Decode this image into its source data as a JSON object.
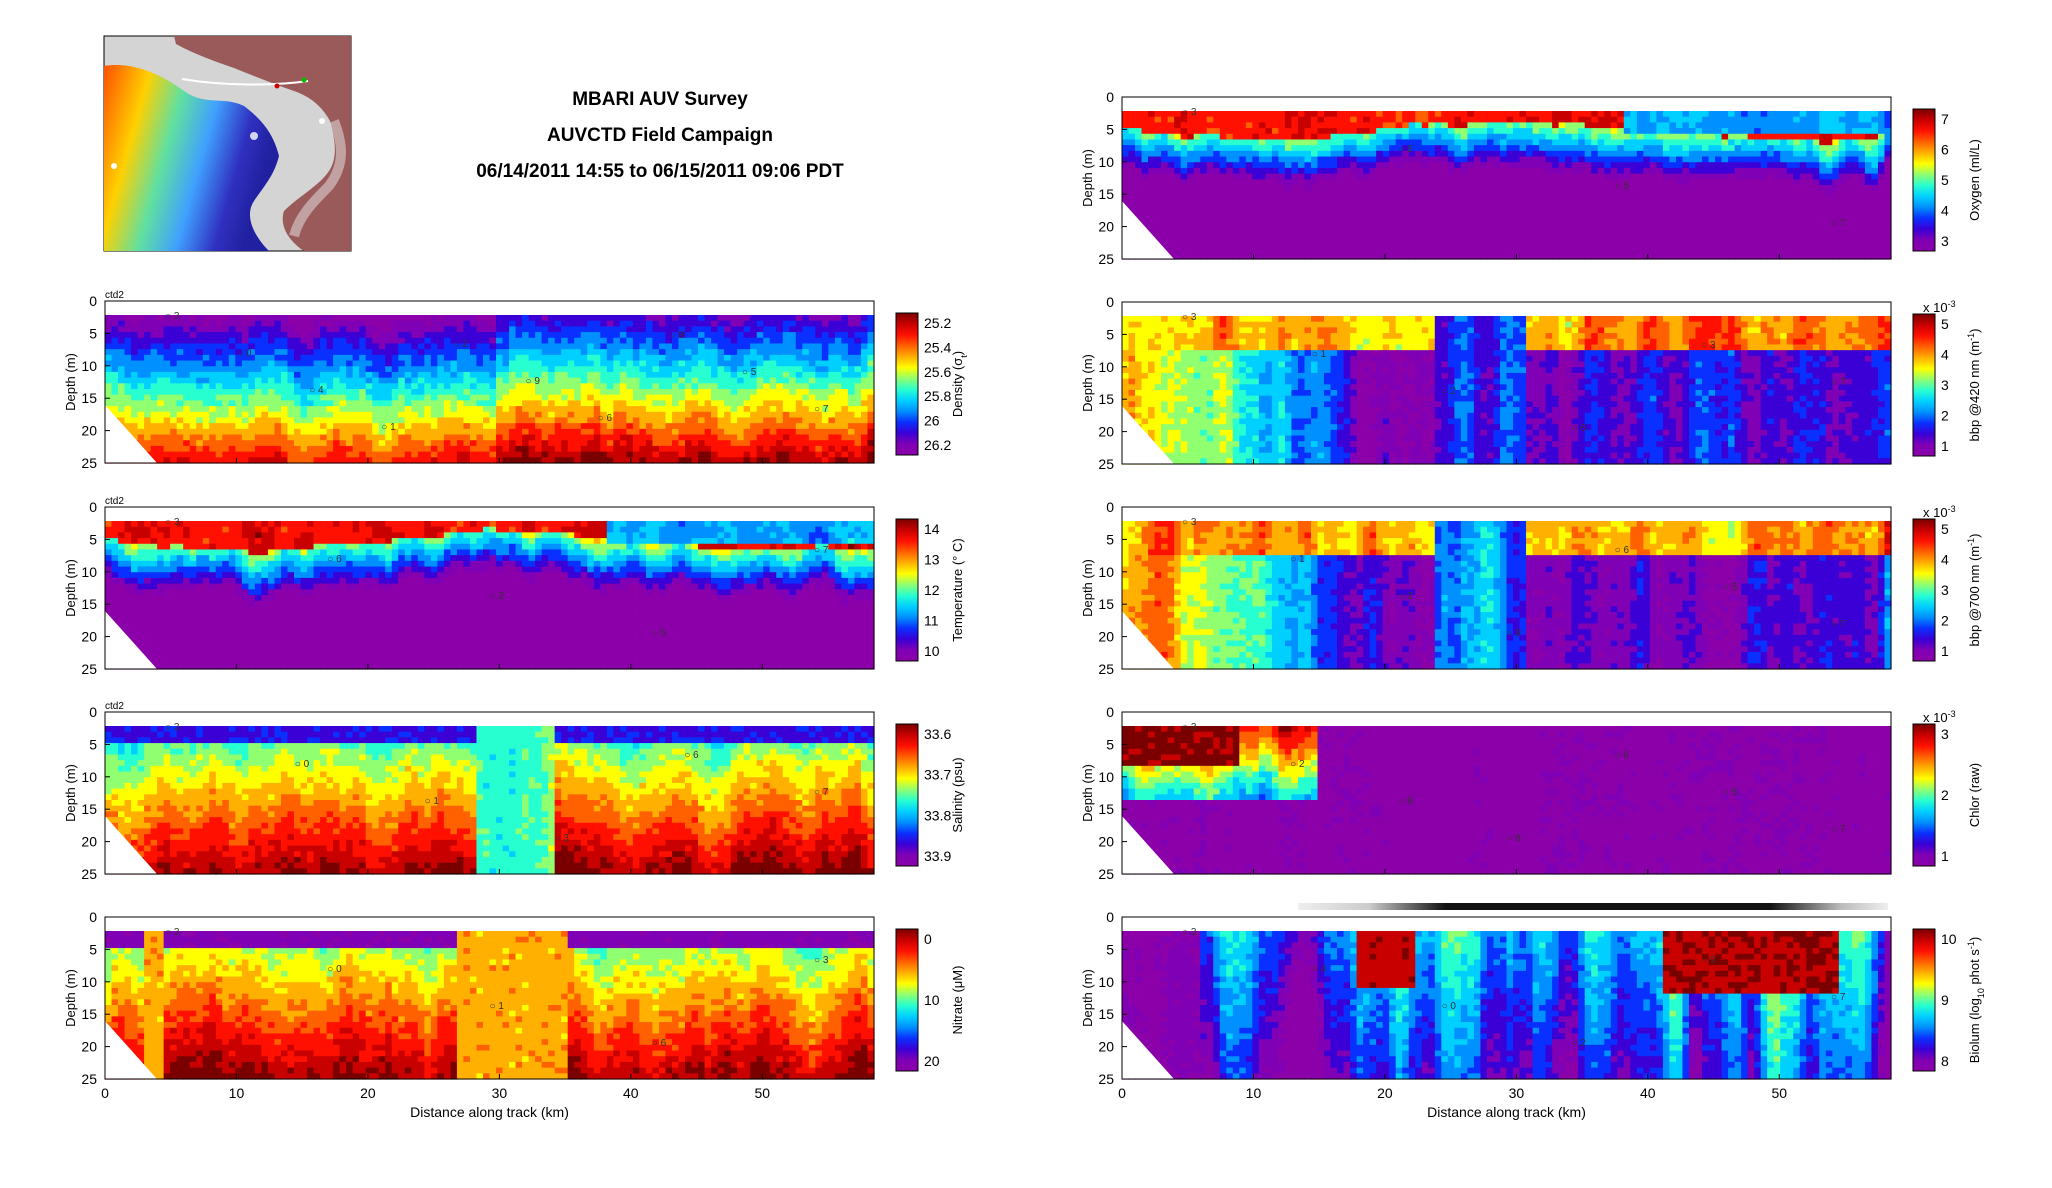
{
  "header": {
    "title": "MBARI AUV Survey",
    "subtitle": "AUVCTD Field Campaign",
    "time_range": "06/14/2011 14:55 to 06/15/2011 09:06 PDT"
  },
  "colors": {
    "colormap": [
      "#8b00a8",
      "#7f00b5",
      "#3a00d6",
      "#0a30ff",
      "#0090ff",
      "#00d0ff",
      "#28ffd0",
      "#90ff70",
      "#ffff00",
      "#ffb000",
      "#ff6000",
      "#ff1000",
      "#c80000",
      "#7a0000"
    ],
    "land": "#9b5a5a",
    "ocean": "#d0d0d0",
    "track": "#ffffff"
  },
  "chart_data": [
    {
      "type": "heatmap",
      "panel": "density",
      "tag": "ctd2",
      "ylabel": "Depth (m)",
      "xlim": [
        0,
        58.5
      ],
      "ylim": [
        25,
        0
      ],
      "yticks": [
        0,
        5,
        10,
        15,
        20,
        25
      ],
      "xticks": [],
      "colorbar": {
        "label_html": "Density (σ<tspan baseline-shift=\"sub\" font-size=\"9\">t</tspan>)",
        "ticks": [
          "25.2",
          "25.4",
          "25.6",
          "25.8",
          "26",
          "26.2"
        ],
        "reversed": false
      },
      "markers": [
        "3",
        "0",
        "4",
        "1",
        "2",
        "9",
        "6",
        "8",
        "5",
        "7"
      ],
      "style": "density",
      "seed": 11,
      "colormap_direction": "low-top"
    },
    {
      "type": "heatmap",
      "panel": "temperature",
      "tag": "ctd2",
      "ylabel": "Depth (m)",
      "xlim": [
        0,
        58.5
      ],
      "ylim": [
        25,
        0
      ],
      "yticks": [
        0,
        5,
        10,
        15,
        20,
        25
      ],
      "xticks": [],
      "colorbar": {
        "label_html": "Temperature (° C)",
        "ticks": [
          "14",
          "13",
          "12",
          "11",
          "10"
        ]
      },
      "markers": [
        "3",
        "6",
        "2",
        "5",
        "7"
      ],
      "style": "warmtop",
      "seed": 23
    },
    {
      "type": "heatmap",
      "panel": "salinity",
      "tag": "ctd2",
      "ylabel": "Depth (m)",
      "xlim": [
        0,
        58.5
      ],
      "ylim": [
        25,
        0
      ],
      "yticks": [
        0,
        5,
        10,
        15,
        20,
        25
      ],
      "xticks": [],
      "colorbar": {
        "label_html": "Salinity (psu)",
        "ticks": [
          "33.6",
          "33.7",
          "33.8",
          "33.9"
        ]
      },
      "markers": [
        "3",
        "0",
        "1",
        "3",
        "6",
        "7"
      ],
      "style": "salinity",
      "seed": 37
    },
    {
      "type": "heatmap",
      "panel": "nitrate",
      "tag": "",
      "ylabel": "Depth (m)",
      "xlim": [
        0,
        58.5
      ],
      "ylim": [
        25,
        0
      ],
      "yticks": [
        0,
        5,
        10,
        15,
        20,
        25
      ],
      "xticks": [
        "0",
        "10",
        "20",
        "30",
        "40",
        "50"
      ],
      "xlabel": "Distance along track (km)",
      "colorbar": {
        "label_html": "Nitrate (μM)",
        "ticks": [
          "0",
          "10",
          "20"
        ]
      },
      "markers": [
        "3",
        "0",
        "1",
        "6",
        "3"
      ],
      "style": "nitrate",
      "seed": 41
    },
    {
      "type": "heatmap",
      "panel": "oxygen",
      "tag": "",
      "ylabel": "Depth (m)",
      "xlim": [
        0,
        58.5
      ],
      "ylim": [
        25,
        0
      ],
      "yticks": [
        0,
        5,
        10,
        15,
        20,
        25
      ],
      "xticks": [],
      "colorbar": {
        "label_html": "Oxygen (ml/L)",
        "ticks": [
          "7",
          "6",
          "5",
          "4",
          "3"
        ]
      },
      "markers": [
        "3",
        "6",
        "5",
        "7"
      ],
      "style": "warmtop",
      "seed": 53
    },
    {
      "type": "heatmap",
      "panel": "bbp420",
      "tag": "",
      "ylabel": "Depth (m)",
      "xlim": [
        0,
        58.5
      ],
      "ylim": [
        25,
        0
      ],
      "yticks": [
        0,
        5,
        10,
        15,
        20,
        25
      ],
      "xticks": [],
      "colorbar": {
        "label_html": "bbp @420 nm (m<tspan baseline-shift=\"super\" font-size=\"9\">-1</tspan>)",
        "ticks": [
          "5",
          "4",
          "3",
          "2",
          "1"
        ],
        "exponent": "x 10"
      },
      "markers": [
        "3",
        "1",
        "2",
        "6",
        "3",
        "7"
      ],
      "style": "bbp",
      "seed": 67
    },
    {
      "type": "heatmap",
      "panel": "bbp700",
      "tag": "",
      "ylabel": "Depth (m)",
      "xlim": [
        0,
        58.5
      ],
      "ylim": [
        25,
        0
      ],
      "yticks": [
        0,
        5,
        10,
        15,
        20,
        25
      ],
      "xticks": [],
      "colorbar": {
        "label_html": "bbp @700 nm (m<tspan baseline-shift=\"super\" font-size=\"9\">-1</tspan>)",
        "ticks": [
          "5",
          "4",
          "3",
          "2",
          "1"
        ],
        "exponent": "x 10"
      },
      "markers": [
        "3",
        "1",
        "2",
        "9",
        "6",
        "5",
        "7"
      ],
      "style": "bbp",
      "seed": 71
    },
    {
      "type": "heatmap",
      "panel": "chlor",
      "tag": "",
      "ylabel": "Depth (m)",
      "xlim": [
        0,
        58.5
      ],
      "ylim": [
        25,
        0
      ],
      "yticks": [
        0,
        5,
        10,
        15,
        20,
        25
      ],
      "xticks": [],
      "colorbar": {
        "label_html": "Chlor (raw)",
        "ticks": [
          "3",
          "2",
          "1"
        ],
        "exponent": "x 10"
      },
      "markers": [
        "3",
        "2",
        "9",
        "6",
        "6",
        "5",
        "7"
      ],
      "style": "chlor",
      "seed": 83
    },
    {
      "type": "heatmap",
      "panel": "biolum",
      "tag": "",
      "ylabel": "Depth (m)",
      "xlim": [
        0,
        58.5
      ],
      "ylim": [
        25,
        0
      ],
      "yticks": [
        0,
        5,
        10,
        15,
        20,
        25
      ],
      "xticks": [
        "0",
        "10",
        "20",
        "30",
        "40",
        "50"
      ],
      "xlabel": "Distance along track (km)",
      "colorbar": {
        "label_html": "Biolum (log<tspan baseline-shift=\"sub\" font-size=\"9\">10</tspan> phot s<tspan baseline-shift=\"super\" font-size=\"9\">-1</tspan>)",
        "ticks": [
          "10",
          "9",
          "8"
        ]
      },
      "markers": [
        "3",
        "4",
        "0",
        "2",
        "9",
        "7"
      ],
      "style": "biolum",
      "seed": 97
    }
  ],
  "exponent_value": "-3"
}
